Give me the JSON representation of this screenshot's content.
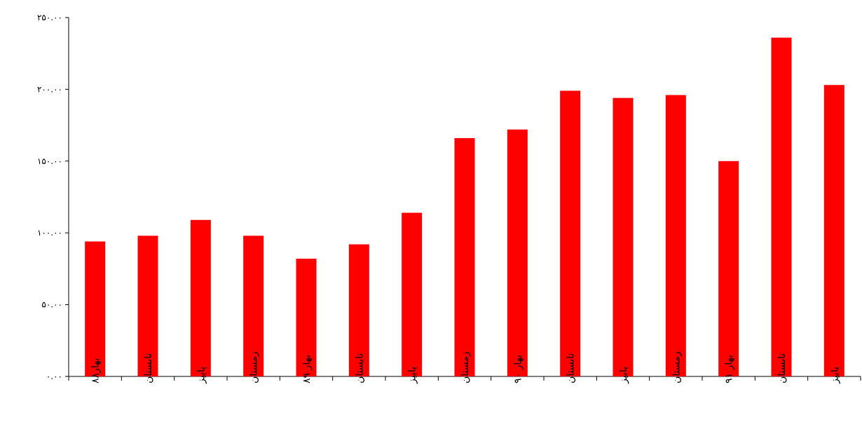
{
  "chart_data": {
    "type": "bar",
    "title": "",
    "xlabel": "",
    "ylabel": "",
    "categories": [
      "بهار۸۸",
      "تابستان",
      "پاییز",
      "زمستان",
      "بهار ۸۹",
      "تابستان",
      "پاییز",
      "زمستان",
      "بهار ۹۰",
      "تابستان",
      "پاییز",
      "زمستان",
      "بهار ۹۱",
      "تابستان",
      "پاییز"
    ],
    "values": [
      94,
      98,
      109,
      98,
      82,
      92,
      114,
      166,
      172,
      199,
      194,
      196,
      150,
      236,
      203
    ],
    "ylim": [
      0,
      250
    ],
    "yticks": [
      0,
      50,
      100,
      150,
      200,
      250
    ],
    "ytick_labels": [
      "۰.۰۰",
      "۵۰.۰۰",
      "۱۰۰.۰۰",
      "۱۵۰.۰۰",
      "۲۰۰.۰۰",
      "۲۵۰.۰۰"
    ],
    "grid": false,
    "legend": "none",
    "bar_color": "#ff0000",
    "axis_color": "#000000"
  }
}
